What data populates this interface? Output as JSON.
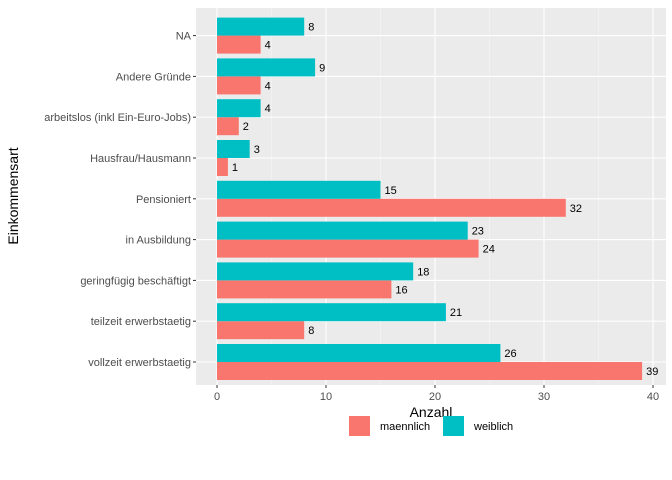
{
  "chart_data": {
    "type": "bar",
    "orientation": "horizontal",
    "xlabel": "Anzahl",
    "ylabel": "Einkommensart",
    "xlim": [
      0,
      40
    ],
    "xticks": [
      0,
      10,
      20,
      30,
      40
    ],
    "grid": true,
    "legend_position": "bottom",
    "categories": [
      "vollzeit erwerbstaetig",
      "teilzeit erwerbstaetig",
      "geringfügig beschäftigt",
      "in Ausbildung",
      "Pensioniert",
      "Hausfrau/Hausmann",
      "arbeitslos (inkl Ein-Euro-Jobs)",
      "Andere Gründe",
      "NA"
    ],
    "series": [
      {
        "name": "maennlich",
        "color": "#F8766D",
        "values": [
          39,
          8,
          16,
          24,
          32,
          1,
          2,
          4,
          4
        ]
      },
      {
        "name": "weiblich",
        "color": "#00BFC4",
        "values": [
          26,
          21,
          18,
          23,
          15,
          3,
          4,
          9,
          8
        ]
      }
    ],
    "colors": {
      "panel_background": "#EBEBEB",
      "grid_major": "#FFFFFF",
      "grid_minor": "#F5F5F5"
    }
  }
}
